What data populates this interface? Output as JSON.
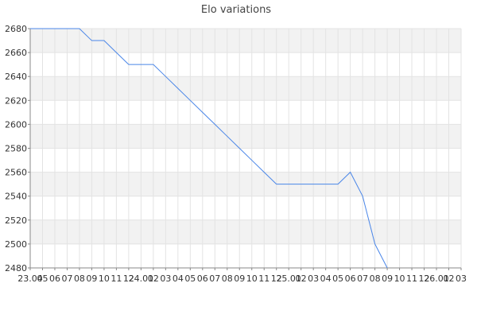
{
  "chart_data": {
    "type": "line",
    "title": "Elo variations",
    "xlabel": "",
    "ylabel": "",
    "ylim": [
      2480,
      2680
    ],
    "yticks": [
      2480,
      2500,
      2520,
      2540,
      2560,
      2580,
      2600,
      2620,
      2640,
      2660,
      2680
    ],
    "x_tick_labels": [
      "23.04",
      "05",
      "06",
      "07",
      "08",
      "09",
      "10",
      "11",
      "12",
      "24.01",
      "02",
      "03",
      "04",
      "05",
      "06",
      "07",
      "08",
      "09",
      "10",
      "11",
      "12",
      "25.01",
      "02",
      "03",
      "04",
      "05",
      "06",
      "07",
      "08",
      "09",
      "10",
      "11",
      "12",
      "26.01",
      "02",
      "03"
    ],
    "grid": true,
    "legend": "none",
    "colors": {
      "line": "#4a86e8",
      "band": "#f2f2f2",
      "grid": "#e3e3e3",
      "axis": "#888888"
    },
    "series": [
      {
        "x": [
          "23.04",
          "05",
          "06",
          "07",
          "08",
          "09",
          "10",
          "11",
          "12",
          "24.01",
          "02",
          "03",
          "04",
          "05",
          "06",
          "07",
          "08",
          "09",
          "10",
          "11",
          "12",
          "25.01",
          "02",
          "03",
          "04",
          "05",
          "06",
          "07",
          "08",
          "09"
        ],
        "values": [
          2680,
          2680,
          2680,
          2680,
          2680,
          2670,
          2670,
          2660,
          2650,
          2650,
          2650,
          2640,
          2630,
          2620,
          2610,
          2600,
          2590,
          2580,
          2570,
          2560,
          2550,
          2550,
          2550,
          2550,
          2550,
          2550,
          2560,
          2540,
          2500,
          2480
        ]
      }
    ]
  }
}
